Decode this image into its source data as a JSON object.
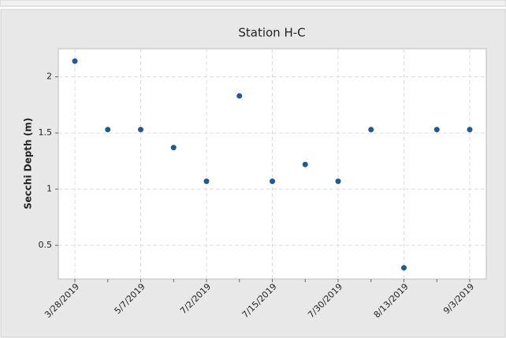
{
  "chart_data": {
    "type": "scatter",
    "title": "Station H-C",
    "y_label": "Secchi Depth (m)",
    "categories": [
      "3/28/2019",
      null,
      "5/7/2019",
      null,
      "7/2/2019",
      null,
      "7/15/2019",
      null,
      "7/30/2019",
      null,
      "8/13/2019",
      null,
      "9/3/2019"
    ],
    "values": [
      2.14,
      1.53,
      1.53,
      1.37,
      1.07,
      1.83,
      1.07,
      1.22,
      1.07,
      1.53,
      0.3,
      1.53,
      1.53
    ],
    "color": "#1f5a96",
    "ylim": [
      0.2,
      2.25
    ],
    "yticks": [
      0.5,
      1.0,
      1.5,
      2.0
    ],
    "grid": true
  }
}
